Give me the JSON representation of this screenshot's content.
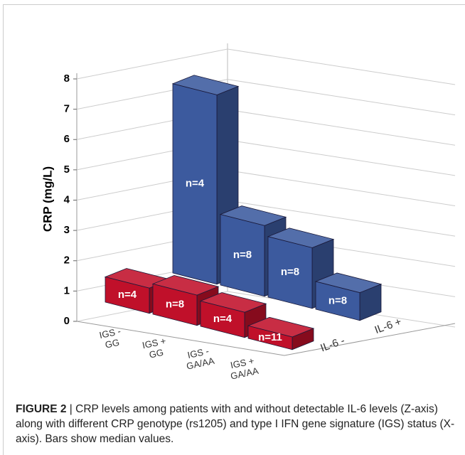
{
  "chart_data": {
    "type": "bar3d",
    "y_label": "CRP (mg/L)",
    "categories": [
      "IGS -\nGG",
      "IGS +\nGG",
      "IGS -\nGA/AA",
      "IGS +\nGA/AA"
    ],
    "series": [
      {
        "name": "IL-6 -",
        "color": "#c0102a",
        "values": [
          1.0,
          1.2,
          1.0,
          0.5
        ],
        "labels": [
          "n=4",
          "n=8",
          "n=4",
          "n=11"
        ]
      },
      {
        "name": "IL-6 +",
        "color": "#3c5a9e",
        "values": [
          7.5,
          2.8,
          2.4,
          1.1
        ],
        "labels": [
          "n=4",
          "n=8",
          "n=8",
          "n=8"
        ]
      }
    ],
    "ylim": [
      0,
      8
    ],
    "yticks": [
      0,
      1,
      2,
      3,
      4,
      5,
      6,
      7,
      8
    ],
    "grid": true
  },
  "caption": {
    "label": "FIGURE 2",
    "text": "| CRP levels among patients with and without detectable IL-6 levels (Z-axis) along with different CRP genotype (rs1205) and type I IFN gene signature (IGS) status (X-axis). Bars show median values."
  }
}
